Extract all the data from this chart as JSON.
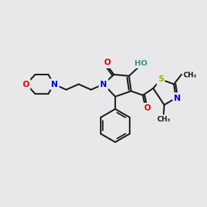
{
  "bg_color": "#e8e8eb",
  "bond_color": "#1a1a1a",
  "atom_colors": {
    "O": "#e00000",
    "N": "#0000dd",
    "S": "#aaaa00",
    "C": "#1a1a1a",
    "HO": "#3a9090"
  },
  "lw": 1.6,
  "fs": 8.5,
  "figsize": [
    3.0,
    3.0
  ],
  "dpi": 100
}
